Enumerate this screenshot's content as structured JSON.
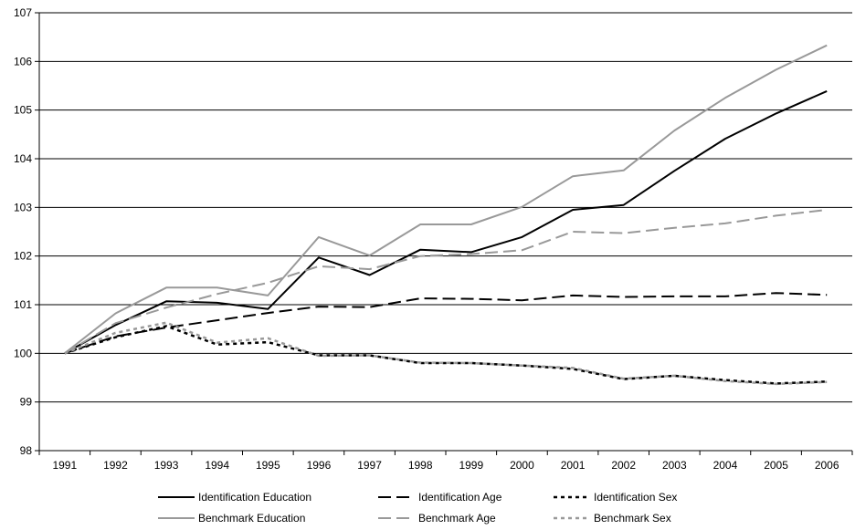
{
  "chart_data": {
    "type": "line",
    "x": [
      "1991",
      "1992",
      "1993",
      "1994",
      "1995",
      "1996",
      "1997",
      "1998",
      "1999",
      "2000",
      "2001",
      "2002",
      "2003",
      "2004",
      "2005",
      "2006"
    ],
    "ylim": [
      98,
      107
    ],
    "yticks": [
      98,
      99,
      100,
      101,
      102,
      103,
      104,
      105,
      106,
      107
    ],
    "grid": "horizontal",
    "legend": "bottom",
    "series": [
      {
        "name": "Identification Education",
        "color": "#000000",
        "dash": "solid",
        "values": [
          100.0,
          100.58,
          101.07,
          101.04,
          100.91,
          101.97,
          101.61,
          102.13,
          102.08,
          102.39,
          102.95,
          103.05,
          103.75,
          104.41,
          104.93,
          105.39
        ]
      },
      {
        "name": "Benchmark Education",
        "color": "#999999",
        "dash": "solid",
        "values": [
          100.0,
          100.82,
          101.35,
          101.35,
          101.19,
          102.39,
          102.01,
          102.65,
          102.65,
          103.01,
          103.64,
          103.76,
          104.58,
          105.25,
          105.83,
          106.33
        ]
      },
      {
        "name": "Identification Age",
        "color": "#000000",
        "dash": "long",
        "values": [
          100.0,
          100.35,
          100.53,
          100.68,
          100.83,
          100.96,
          100.95,
          101.13,
          101.12,
          101.09,
          101.19,
          101.16,
          101.17,
          101.17,
          101.24,
          101.2
        ]
      },
      {
        "name": "Benchmark Age",
        "color": "#999999",
        "dash": "long",
        "values": [
          100.0,
          100.62,
          100.94,
          101.22,
          101.45,
          101.79,
          101.73,
          102.0,
          102.04,
          102.12,
          102.5,
          102.47,
          102.58,
          102.67,
          102.83,
          102.95
        ]
      },
      {
        "name": "Identification Sex",
        "color": "#000000",
        "dash": "dot",
        "values": [
          100.0,
          100.33,
          100.56,
          100.18,
          100.23,
          99.96,
          99.96,
          99.8,
          99.8,
          99.75,
          99.68,
          99.47,
          99.54,
          99.45,
          99.38,
          99.42
        ]
      },
      {
        "name": "Benchmark Sex",
        "color": "#999999",
        "dash": "dot",
        "values": [
          100.0,
          100.42,
          100.63,
          100.22,
          100.31,
          99.95,
          99.96,
          99.81,
          99.8,
          99.75,
          99.7,
          99.48,
          99.54,
          99.43,
          99.37,
          99.41
        ]
      }
    ]
  }
}
